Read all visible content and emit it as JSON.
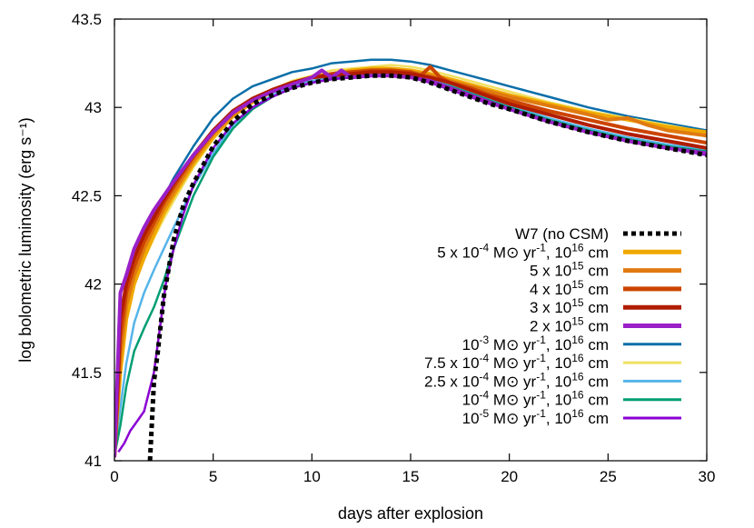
{
  "chart_data": {
    "type": "line",
    "xlabel": "days after explosion",
    "ylabel": "log bolometric luminosity (erg s⁻¹)",
    "xlim": [
      0,
      30
    ],
    "ylim": [
      41,
      43.5
    ],
    "xticks": [
      0,
      5,
      10,
      15,
      20,
      25,
      30
    ],
    "yticks": [
      41,
      41.5,
      42,
      42.5,
      43,
      43.5
    ],
    "xtick_labels": [
      "0",
      "5",
      "10",
      "15",
      "20",
      "25",
      "30"
    ],
    "ytick_labels": [
      "41",
      "41.5",
      "42",
      "42.5",
      "43",
      "43.5"
    ],
    "grid": false,
    "legend_position": "bottom-right",
    "series": [
      {
        "name": "W7 (no CSM)",
        "color": "#000000",
        "dashed": true,
        "x": [
          1.8,
          2.0,
          2.2,
          2.5,
          3.0,
          3.5,
          4.0,
          5.0,
          6.0,
          7.0,
          8.0,
          9.0,
          10.0,
          11.0,
          12.0,
          13.0,
          14.0,
          15.0,
          16.0,
          17.0,
          18.0,
          19.0,
          20.0,
          22.0,
          24.0,
          26.0,
          28.0,
          30.0
        ],
        "y": [
          41.0,
          41.45,
          41.62,
          41.93,
          42.25,
          42.45,
          42.57,
          42.78,
          42.92,
          43.02,
          43.07,
          43.11,
          43.14,
          43.16,
          43.17,
          43.18,
          43.18,
          43.17,
          43.14,
          43.1,
          43.06,
          43.02,
          42.99,
          42.92,
          42.86,
          42.81,
          42.77,
          42.73
        ]
      },
      {
        "name": "5 x 10⁻⁴ M⊙ yr⁻¹, 10¹⁶ cm",
        "color": "#f0a800",
        "dashed": false,
        "x": [
          0,
          0.3,
          0.6,
          1.0,
          1.5,
          2.0,
          2.5,
          3.0,
          4.0,
          5.0,
          6.0,
          7.0,
          8.0,
          9.0,
          10.0,
          11.0,
          12.0,
          13.0,
          14.0,
          15.0,
          16.0,
          17.0,
          18.0,
          19.0,
          20.0,
          22.0,
          24.0,
          26.0,
          28.0,
          30.0
        ],
        "y": [
          41.05,
          41.5,
          41.8,
          42.0,
          42.15,
          42.28,
          42.4,
          42.5,
          42.68,
          42.83,
          42.95,
          43.03,
          43.09,
          43.14,
          43.17,
          43.19,
          43.21,
          43.22,
          43.22,
          43.21,
          43.19,
          43.16,
          43.13,
          43.1,
          43.07,
          43.02,
          42.97,
          42.93,
          42.89,
          42.86
        ]
      },
      {
        "name": "5 x 10¹⁵ cm",
        "color": "#e07a10",
        "dashed": false,
        "x": [
          0,
          0.3,
          0.6,
          1.0,
          1.5,
          2.0,
          2.5,
          3.0,
          4.0,
          5.0,
          6.0,
          7.0,
          8.0,
          9.0,
          10.0,
          11.0,
          12.0,
          13.0,
          14.0,
          15.0,
          16.0,
          17.0,
          18.0,
          19.0,
          20.0,
          22.0,
          24.0,
          25.0,
          26.0,
          27.0,
          28.0,
          30.0
        ],
        "y": [
          41.02,
          41.6,
          41.88,
          42.05,
          42.2,
          42.32,
          42.43,
          42.52,
          42.7,
          42.85,
          42.96,
          43.04,
          43.1,
          43.14,
          43.17,
          43.19,
          43.2,
          43.21,
          43.21,
          43.2,
          43.18,
          43.15,
          43.12,
          43.09,
          43.06,
          43.01,
          42.96,
          42.93,
          42.94,
          42.9,
          42.87,
          42.84
        ]
      },
      {
        "name": "4 x 10¹⁵ cm",
        "color": "#cc4400",
        "dashed": false,
        "x": [
          0,
          0.3,
          0.6,
          1.0,
          1.5,
          2.0,
          2.5,
          3.0,
          4.0,
          5.0,
          6.0,
          7.0,
          8.0,
          9.0,
          10.0,
          11.0,
          12.0,
          13.0,
          14.0,
          15.0,
          15.5,
          16.0,
          16.5,
          17.0,
          18.0,
          19.0,
          20.0,
          22.0,
          24.0,
          26.0,
          28.0,
          30.0
        ],
        "y": [
          41.02,
          41.7,
          41.95,
          42.1,
          42.24,
          42.35,
          42.46,
          42.55,
          42.72,
          42.86,
          42.97,
          43.05,
          43.1,
          43.14,
          43.17,
          43.19,
          43.2,
          43.21,
          43.21,
          43.2,
          43.18,
          43.23,
          43.17,
          43.14,
          43.11,
          43.07,
          43.04,
          42.98,
          42.93,
          42.88,
          42.84,
          42.8
        ]
      },
      {
        "name": "3 x 10¹⁵ cm",
        "color": "#b01c00",
        "dashed": false,
        "x": [
          0,
          0.3,
          0.6,
          1.0,
          1.5,
          2.0,
          2.5,
          3.0,
          4.0,
          5.0,
          6.0,
          7.0,
          8.0,
          9.0,
          10.0,
          11.0,
          12.0,
          13.0,
          14.0,
          15.0,
          16.0,
          17.0,
          18.0,
          19.0,
          20.0,
          22.0,
          24.0,
          26.0,
          28.0,
          30.0
        ],
        "y": [
          41.02,
          41.8,
          42.0,
          42.15,
          42.28,
          42.38,
          42.48,
          42.57,
          42.73,
          42.87,
          42.98,
          43.05,
          43.1,
          43.14,
          43.17,
          43.18,
          43.19,
          43.2,
          43.2,
          43.19,
          43.17,
          43.14,
          43.1,
          43.06,
          43.02,
          42.96,
          42.9,
          42.85,
          42.81,
          42.77
        ]
      },
      {
        "name": "2 x 10¹⁵ cm",
        "color": "#9a20c8",
        "dashed": false,
        "x": [
          0,
          0.3,
          0.6,
          1.0,
          1.5,
          2.0,
          2.5,
          3.0,
          4.0,
          5.0,
          6.0,
          7.0,
          8.0,
          9.0,
          10.0,
          10.5,
          11.0,
          11.5,
          12.0,
          13.0,
          14.0,
          15.0,
          16.0,
          17.0,
          18.0,
          19.0,
          20.0,
          22.0,
          24.0,
          26.0,
          28.0,
          30.0
        ],
        "y": [
          41.02,
          41.95,
          42.05,
          42.2,
          42.32,
          42.42,
          42.5,
          42.58,
          42.73,
          42.86,
          42.97,
          43.04,
          43.09,
          43.13,
          43.17,
          43.21,
          43.17,
          43.21,
          43.17,
          43.18,
          43.18,
          43.17,
          43.15,
          43.11,
          43.07,
          43.03,
          42.99,
          42.92,
          42.86,
          42.81,
          42.77,
          42.74
        ]
      },
      {
        "name": "10⁻³ M⊙ yr⁻¹, 10¹⁶ cm",
        "color": "#0a6ea8",
        "dashed": false,
        "x": [
          0,
          0.3,
          0.6,
          1.0,
          1.5,
          2.0,
          2.5,
          3.0,
          4.0,
          5.0,
          6.0,
          7.0,
          8.0,
          9.0,
          10.0,
          11.0,
          12.0,
          13.0,
          14.0,
          15.0,
          16.0,
          17.0,
          18.0,
          19.0,
          20.0,
          22.0,
          24.0,
          26.0,
          28.0,
          30.0
        ],
        "y": [
          41.05,
          41.75,
          41.97,
          42.12,
          42.27,
          42.38,
          42.49,
          42.6,
          42.78,
          42.94,
          43.05,
          43.12,
          43.16,
          43.2,
          43.22,
          43.25,
          43.26,
          43.27,
          43.27,
          43.26,
          43.24,
          43.21,
          43.18,
          43.15,
          43.12,
          43.06,
          43.0,
          42.95,
          42.91,
          42.87
        ]
      },
      {
        "name": "7.5 x 10⁻⁴ M⊙ yr⁻¹, 10¹⁶ cm",
        "color": "#f0e060",
        "dashed": false,
        "x": [
          0,
          0.3,
          0.6,
          1.0,
          1.5,
          2.0,
          2.5,
          3.0,
          4.0,
          5.0,
          6.0,
          7.0,
          8.0,
          9.0,
          10.0,
          11.0,
          12.0,
          13.0,
          14.0,
          15.0,
          16.0,
          17.0,
          18.0,
          19.0,
          20.0,
          22.0,
          24.0,
          26.0,
          28.0,
          30.0
        ],
        "y": [
          41.05,
          41.55,
          41.82,
          42.0,
          42.14,
          42.26,
          42.37,
          42.47,
          42.66,
          42.82,
          42.95,
          43.04,
          43.1,
          43.15,
          43.18,
          43.21,
          43.22,
          43.23,
          43.24,
          43.23,
          43.21,
          43.18,
          43.15,
          43.12,
          43.09,
          43.03,
          42.98,
          42.94,
          42.9,
          42.86
        ]
      },
      {
        "name": "2.5 x 10⁻⁴ M⊙ yr⁻¹, 10¹⁶ cm",
        "color": "#56b4e9",
        "dashed": false,
        "x": [
          0,
          0.3,
          0.6,
          1.0,
          1.5,
          2.0,
          2.5,
          3.0,
          4.0,
          5.0,
          6.0,
          7.0,
          8.0,
          9.0,
          10.0,
          11.0,
          12.0,
          13.0,
          14.0,
          15.0,
          16.0,
          17.0,
          18.0,
          19.0,
          20.0,
          22.0,
          24.0,
          26.0,
          28.0,
          30.0
        ],
        "y": [
          41.05,
          41.3,
          41.55,
          41.78,
          41.95,
          42.08,
          42.2,
          42.32,
          42.55,
          42.74,
          42.9,
          43.0,
          43.07,
          43.12,
          43.15,
          43.17,
          43.18,
          43.19,
          43.19,
          43.18,
          43.16,
          43.13,
          43.09,
          43.05,
          43.01,
          42.94,
          42.88,
          42.83,
          42.79,
          42.76
        ]
      },
      {
        "name": "10⁻⁴ M⊙ yr⁻¹, 10¹⁶ cm",
        "color": "#009e73",
        "dashed": false,
        "x": [
          0,
          0.3,
          0.6,
          1.0,
          1.5,
          2.0,
          2.5,
          3.0,
          4.0,
          5.0,
          6.0,
          7.0,
          8.0,
          9.0,
          10.0,
          11.0,
          12.0,
          13.0,
          14.0,
          15.0,
          16.0,
          17.0,
          18.0,
          19.0,
          20.0,
          22.0,
          24.0,
          26.0,
          28.0,
          30.0
        ],
        "y": [
          41.03,
          41.2,
          41.42,
          41.62,
          41.75,
          41.87,
          42.02,
          42.2,
          42.5,
          42.72,
          42.88,
          42.99,
          43.06,
          43.11,
          43.14,
          43.16,
          43.17,
          43.18,
          43.18,
          43.17,
          43.15,
          43.12,
          43.08,
          43.04,
          43.0,
          42.93,
          42.87,
          42.82,
          42.78,
          42.75
        ]
      },
      {
        "name": "10⁻⁵ M⊙ yr⁻¹, 10¹⁶ cm",
        "color": "#8b00d4",
        "dashed": false,
        "x": [
          0.2,
          0.5,
          0.8,
          1.0,
          1.5,
          2.0,
          2.3,
          2.6,
          3.0,
          3.5,
          4.0,
          5.0,
          6.0,
          7.0,
          8.0,
          9.0,
          10.0,
          11.0,
          12.0,
          13.0,
          14.0,
          15.0,
          16.0,
          17.0,
          18.0,
          19.0,
          20.0,
          22.0,
          24.0,
          26.0,
          28.0,
          30.0
        ],
        "y": [
          41.05,
          41.1,
          41.17,
          41.2,
          41.28,
          41.5,
          41.75,
          42.0,
          42.2,
          42.4,
          42.56,
          42.77,
          42.91,
          43.0,
          43.06,
          43.11,
          43.14,
          43.16,
          43.17,
          43.18,
          43.18,
          43.17,
          43.14,
          43.1,
          43.06,
          43.02,
          42.99,
          42.92,
          42.86,
          42.81,
          42.77,
          42.73
        ]
      }
    ]
  },
  "legend": {
    "items": [
      {
        "main": "W7 (no CSM)",
        "sup": [],
        "color": "#000000",
        "dashed": true
      },
      {
        "main": "5 x 10|-4| M⊙ yr|-1|, 10|16| cm",
        "color": "#f0a800",
        "dashed": false
      },
      {
        "main": "5 x 10|15| cm",
        "color": "#e07a10",
        "dashed": false
      },
      {
        "main": "4 x 10|15| cm",
        "color": "#cc4400",
        "dashed": false
      },
      {
        "main": "3 x 10|15| cm",
        "color": "#b01c00",
        "dashed": false
      },
      {
        "main": "2 x 10|15| cm",
        "color": "#9a20c8",
        "dashed": false
      },
      {
        "main": "10|-3| M⊙ yr|-1|, 10|16| cm",
        "color": "#0a6ea8",
        "dashed": false
      },
      {
        "main": "7.5 x 10|-4| M⊙ yr|-1|, 10|16| cm",
        "color": "#f0e060",
        "dashed": false
      },
      {
        "main": "2.5 x 10|-4| M⊙ yr|-1|, 10|16| cm",
        "color": "#56b4e9",
        "dashed": false
      },
      {
        "main": "10|-4| M⊙ yr|-1|, 10|16| cm",
        "color": "#009e73",
        "dashed": false
      },
      {
        "main": "10|-5| M⊙ yr|-1|, 10|16| cm",
        "color": "#8b00d4",
        "dashed": false
      }
    ]
  }
}
